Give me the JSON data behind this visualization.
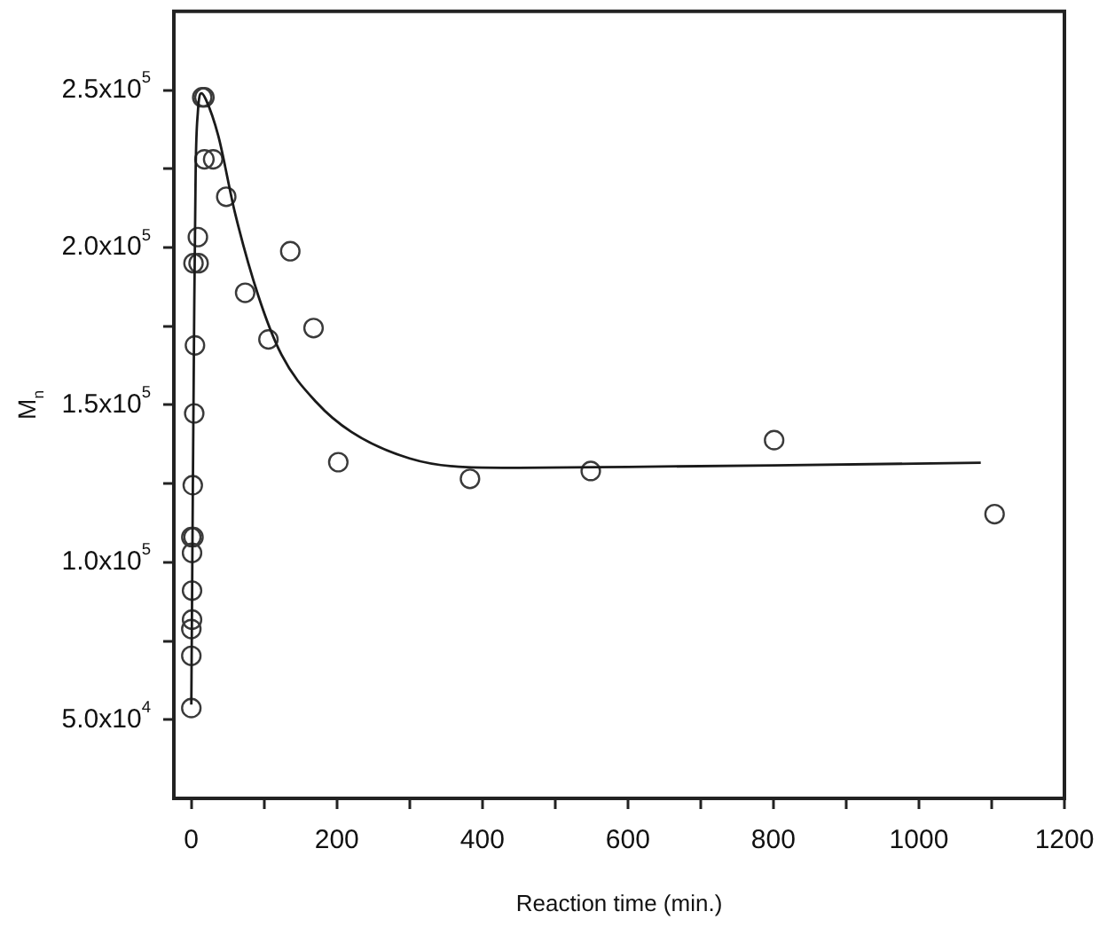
{
  "chart_data": {
    "type": "scatter",
    "xlabel": "Reaction time (min.)",
    "ylabel": "M$_{n}$",
    "xlim": [
      -24,
      1200
    ],
    "xticks": [
      0,
      {
        "value": 100,
        "label": null
      },
      200,
      {
        "value": 300,
        "label": null
      },
      400,
      {
        "value": 500,
        "label": null
      },
      600,
      {
        "value": 700,
        "label": null
      },
      800,
      {
        "value": 900,
        "label": null
      },
      1000,
      {
        "value": 1100,
        "label": null
      },
      1200
    ],
    "ylim": [
      25000,
      275000
    ],
    "yticks": [
      {
        "value": 50000,
        "label": "5.0x10$^{4}$"
      },
      {
        "value": 75000,
        "label": null
      },
      {
        "value": 100000,
        "label": "1.0x10$^{5}$"
      },
      {
        "value": 125000,
        "label": null
      },
      {
        "value": 150000,
        "label": "1.5x10$^{5}$"
      },
      {
        "value": 175000,
        "label": null
      },
      {
        "value": 200000,
        "label": "2.0x10$^{5}$"
      },
      {
        "value": 225000,
        "label": null
      },
      {
        "value": 250000,
        "label": "2.5x10$^{5}$"
      }
    ],
    "grid": false,
    "legend": false,
    "marker": "circle",
    "series": [
      {
        "color": "#3a3a3a",
        "x": [
          0,
          0,
          0,
          1,
          1,
          1,
          0,
          3,
          2,
          4,
          5,
          3,
          10,
          9,
          15,
          18,
          18,
          30,
          48,
          74,
          106,
          136,
          168,
          202,
          383,
          549,
          801,
          1104
        ],
        "values": [
          53700,
          70300,
          78800,
          81800,
          91000,
          103000,
          108000,
          108000,
          124500,
          147300,
          168900,
          195000,
          195000,
          203300,
          247700,
          247700,
          228000,
          228000,
          216100,
          185600,
          170800,
          198800,
          174400,
          131800,
          126500,
          129000,
          138800,
          115300
        ]
      },
      {
        "type": "line",
        "marker": "none",
        "color": "#1a1a1a",
        "x": [
          0,
          2,
          4,
          6,
          9,
          14,
          20,
          37,
          60,
          92,
          124,
          172,
          220,
          300,
          379,
          450,
          600,
          800,
          1085
        ],
        "values": [
          54800,
          120000,
          180000,
          225000,
          243000,
          249000,
          247000,
          235500,
          211000,
          184700,
          165900,
          150800,
          141400,
          133000,
          130200,
          130000,
          130300,
          130800,
          131600
        ]
      }
    ]
  }
}
